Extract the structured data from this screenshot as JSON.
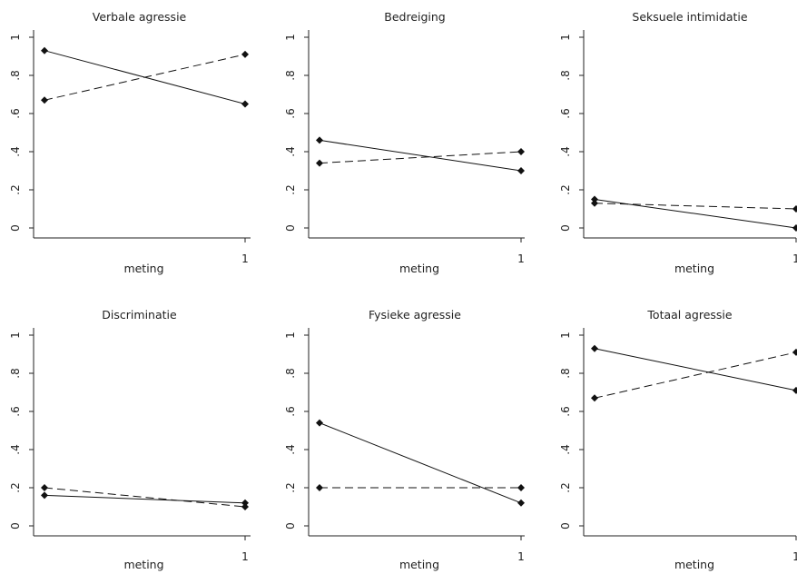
{
  "chart_data": [
    {
      "type": "line",
      "title": "Verbale agressie",
      "xlabel": "meting",
      "x": [
        "",
        "1"
      ],
      "ylim": [
        0,
        1
      ],
      "yticks": [
        0,
        0.2,
        0.4,
        0.6,
        0.8,
        1
      ],
      "ytick_labels": [
        "0",
        ".2",
        ".4",
        ".6",
        ".8",
        "1"
      ],
      "series": [
        {
          "style": "solid",
          "values": [
            0.93,
            0.65
          ]
        },
        {
          "style": "dashed",
          "values": [
            0.67,
            0.91
          ]
        }
      ]
    },
    {
      "type": "line",
      "title": "Bedreiging",
      "xlabel": "meting",
      "x": [
        "",
        "1"
      ],
      "ylim": [
        0,
        1
      ],
      "yticks": [
        0,
        0.2,
        0.4,
        0.6,
        0.8,
        1
      ],
      "ytick_labels": [
        "0",
        ".2",
        ".4",
        ".6",
        ".8",
        "1"
      ],
      "series": [
        {
          "style": "solid",
          "values": [
            0.46,
            0.3
          ]
        },
        {
          "style": "dashed",
          "values": [
            0.34,
            0.4
          ]
        }
      ]
    },
    {
      "type": "line",
      "title": "Seksuele intimidatie",
      "xlabel": "meting",
      "x": [
        "",
        "1"
      ],
      "ylim": [
        0,
        1
      ],
      "yticks": [
        0,
        0.2,
        0.4,
        0.6,
        0.8,
        1
      ],
      "ytick_labels": [
        "0",
        ".2",
        ".4",
        ".6",
        ".8",
        "1"
      ],
      "series": [
        {
          "style": "solid",
          "values": [
            0.15,
            0.0
          ]
        },
        {
          "style": "dashed",
          "values": [
            0.13,
            0.1
          ]
        }
      ]
    },
    {
      "type": "line",
      "title": "Discriminatie",
      "xlabel": "meting",
      "x": [
        "",
        "1"
      ],
      "ylim": [
        0,
        1
      ],
      "yticks": [
        0,
        0.2,
        0.4,
        0.6,
        0.8,
        1
      ],
      "ytick_labels": [
        "0",
        ".2",
        ".4",
        ".6",
        ".8",
        "1"
      ],
      "series": [
        {
          "style": "solid",
          "values": [
            0.16,
            0.12
          ]
        },
        {
          "style": "dashed",
          "values": [
            0.2,
            0.1
          ]
        }
      ]
    },
    {
      "type": "line",
      "title": "Fysieke agressie",
      "xlabel": "meting",
      "x": [
        "",
        "1"
      ],
      "ylim": [
        0,
        1
      ],
      "yticks": [
        0,
        0.2,
        0.4,
        0.6,
        0.8,
        1
      ],
      "ytick_labels": [
        "0",
        ".2",
        ".4",
        ".6",
        ".8",
        "1"
      ],
      "series": [
        {
          "style": "solid",
          "values": [
            0.54,
            0.12
          ]
        },
        {
          "style": "dashed",
          "values": [
            0.2,
            0.2
          ]
        }
      ]
    },
    {
      "type": "line",
      "title": "Totaal agressie",
      "xlabel": "meting",
      "x": [
        "",
        "1"
      ],
      "ylim": [
        0,
        1
      ],
      "yticks": [
        0,
        0.2,
        0.4,
        0.6,
        0.8,
        1
      ],
      "ytick_labels": [
        "0",
        ".2",
        ".4",
        ".6",
        ".8",
        "1"
      ],
      "series": [
        {
          "style": "solid",
          "values": [
            0.93,
            0.71
          ]
        },
        {
          "style": "dashed",
          "values": [
            0.67,
            0.91
          ]
        }
      ]
    }
  ],
  "colors": {
    "line": "#111111",
    "marker": "#111111",
    "axis": "#222222",
    "background": "#ffffff"
  }
}
